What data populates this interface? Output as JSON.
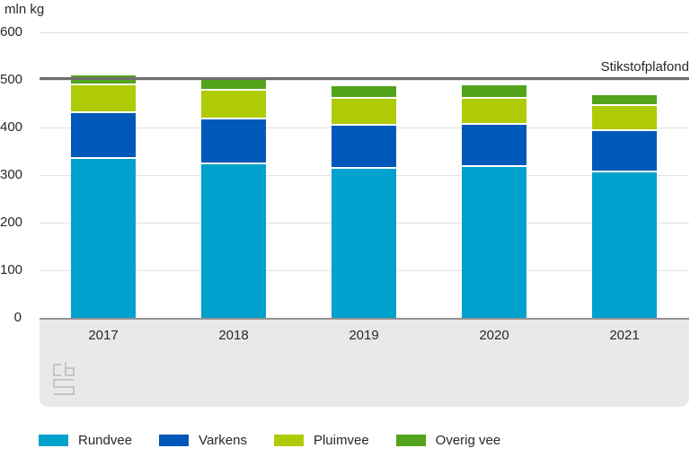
{
  "chart_data": {
    "type": "bar",
    "stacked": true,
    "title": "",
    "ylabel": "mln kg",
    "xlabel": "",
    "ylim": [
      0,
      600
    ],
    "yticks": [
      0,
      100,
      200,
      300,
      400,
      500,
      600
    ],
    "grid": true,
    "legend_position": "bottom",
    "categories": [
      "2017",
      "2018",
      "2019",
      "2020",
      "2021"
    ],
    "series": [
      {
        "name": "Rundvee",
        "color": "#00a1cd",
        "values": [
          337,
          327,
          317,
          320,
          310
        ]
      },
      {
        "name": "Varkens",
        "color": "#0058b8",
        "values": [
          96,
          94,
          90,
          89,
          87
        ]
      },
      {
        "name": "Pluimvee",
        "color": "#afcb05",
        "values": [
          60,
          60,
          57,
          56,
          52
        ]
      },
      {
        "name": "Overig vee",
        "color": "#53a31d",
        "values": [
          17,
          19,
          23,
          23,
          19
        ]
      }
    ],
    "totals": [
      510,
      500,
      487,
      488,
      468
    ],
    "reference_line": {
      "label": "Stikstofplafond",
      "value": 503.5,
      "color": "#6e6e6e"
    }
  },
  "colors": {
    "grid": "#e2e2e2",
    "axis": "#919191",
    "band": "#e9e9e9",
    "text": "#282828",
    "logo": "#c5c5c5"
  },
  "logo": {
    "name": "cbs-logo"
  }
}
